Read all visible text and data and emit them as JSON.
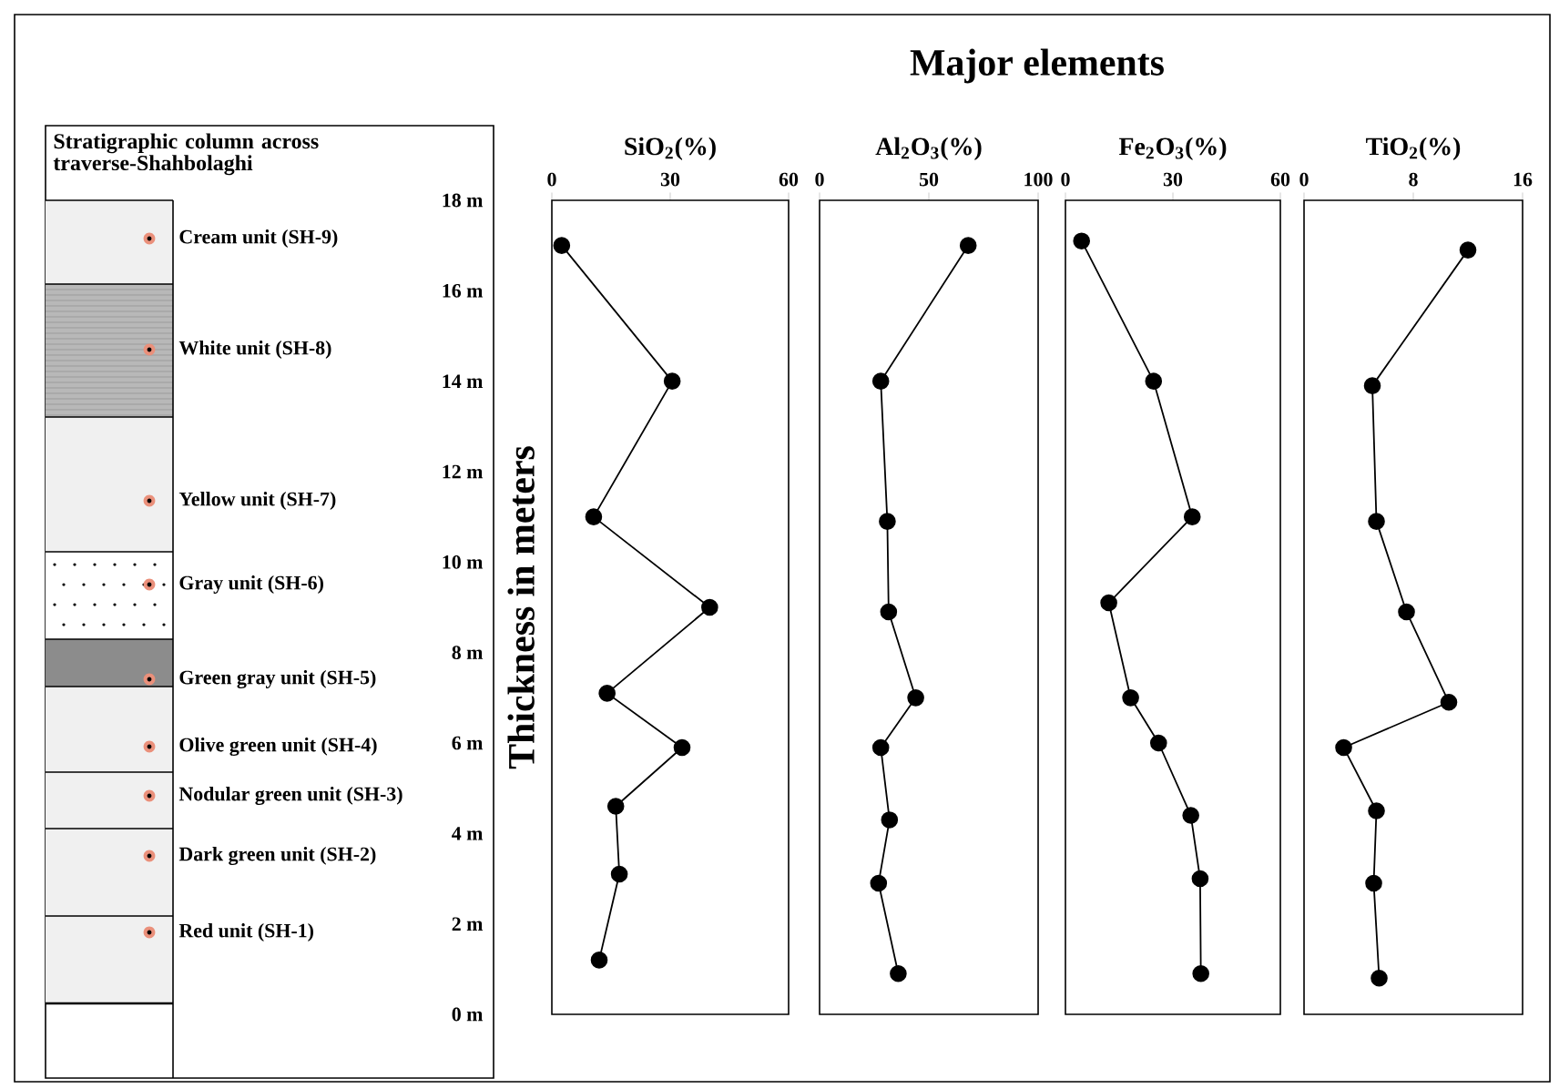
{
  "chart_data": [
    {
      "type": "other",
      "title": "Stratigraphic column across traverse-Shahbolaghi",
      "annotations": [
        "Cream unit (SH-9)",
        "White unit (SH-8)",
        "Yellow unit (SH-7)",
        "Gray unit (SH-6)",
        "Green gray unit (SH-5)",
        "Olive green unit (SH-4)",
        "Nodular green unit (SH-3)",
        "Dark green unit (SH-2)",
        "Red unit (SH-1)"
      ]
    },
    {
      "type": "line",
      "xlabel": "SiO$_{2}$(%)",
      "ylabel": "Thickness in meters",
      "annotations": [
        "Major elements"
      ],
      "xlim": [
        0,
        60
      ],
      "xticks": [
        0,
        30,
        60
      ],
      "ylim": [
        0,
        18
      ],
      "yticks": [
        {
          "value": 0,
          "label": "0 m"
        },
        {
          "value": 2,
          "label": "2 m"
        },
        {
          "value": 4,
          "label": "4 m"
        },
        {
          "value": 6,
          "label": "6 m"
        },
        {
          "value": 8,
          "label": "8 m"
        },
        {
          "value": 10,
          "label": "10 m"
        },
        {
          "value": 12,
          "label": "12 m"
        },
        {
          "value": 14,
          "label": "14 m"
        },
        {
          "value": 16,
          "label": "16 m"
        },
        {
          "value": 18,
          "label": "18 m"
        }
      ],
      "marker": "circle",
      "series": [
        {
          "color": "#000000",
          "x": [
            2.5,
            30.5,
            10.6,
            40,
            14,
            33,
            16.2,
            17.1,
            12
          ],
          "values": [
            17.0,
            14.0,
            11.0,
            9.0,
            7.1,
            5.9,
            4.6,
            3.1,
            1.2
          ]
        }
      ]
    },
    {
      "type": "line",
      "xlabel": "Al$_{2}$O$_{3}$(%)",
      "xlim": [
        0,
        100
      ],
      "xticks": [
        0,
        50,
        100
      ],
      "ylim": [
        0,
        18
      ],
      "tick_labels": "x",
      "marker": "circle",
      "series": [
        {
          "color": "#000000",
          "x": [
            68,
            28,
            31,
            31.6,
            44,
            28,
            32,
            27,
            36
          ],
          "values": [
            17.0,
            14.0,
            10.9,
            8.9,
            7.0,
            5.9,
            4.3,
            2.9,
            0.9
          ]
        }
      ]
    },
    {
      "type": "line",
      "xlabel": "Fe$_{2}$O$_{3}$(%)",
      "xlim": [
        0,
        60
      ],
      "xticks": [
        0,
        30,
        60
      ],
      "ylim": [
        0,
        18
      ],
      "tick_labels": "x",
      "marker": "circle",
      "series": [
        {
          "color": "#000000",
          "x": [
            4.5,
            24.6,
            35.4,
            12.1,
            18.2,
            26,
            35,
            37.6,
            37.8
          ],
          "values": [
            17.1,
            14.0,
            11.0,
            9.1,
            7.0,
            6.0,
            4.4,
            3.0,
            0.9
          ]
        }
      ]
    },
    {
      "type": "line",
      "xlabel": "TiO$_{2}$(%)",
      "xlim": [
        0,
        16
      ],
      "xticks": [
        0,
        8,
        16
      ],
      "ylim": [
        0,
        18
      ],
      "tick_labels": "x",
      "marker": "circle",
      "series": [
        {
          "color": "#000000",
          "x": [
            12.0,
            5.0,
            5.3,
            7.5,
            10.6,
            2.9,
            5.3,
            5.1,
            5.5
          ],
          "values": [
            16.9,
            13.9,
            10.9,
            8.9,
            6.9,
            5.9,
            4.5,
            2.9,
            0.8
          ]
        }
      ]
    }
  ]
}
